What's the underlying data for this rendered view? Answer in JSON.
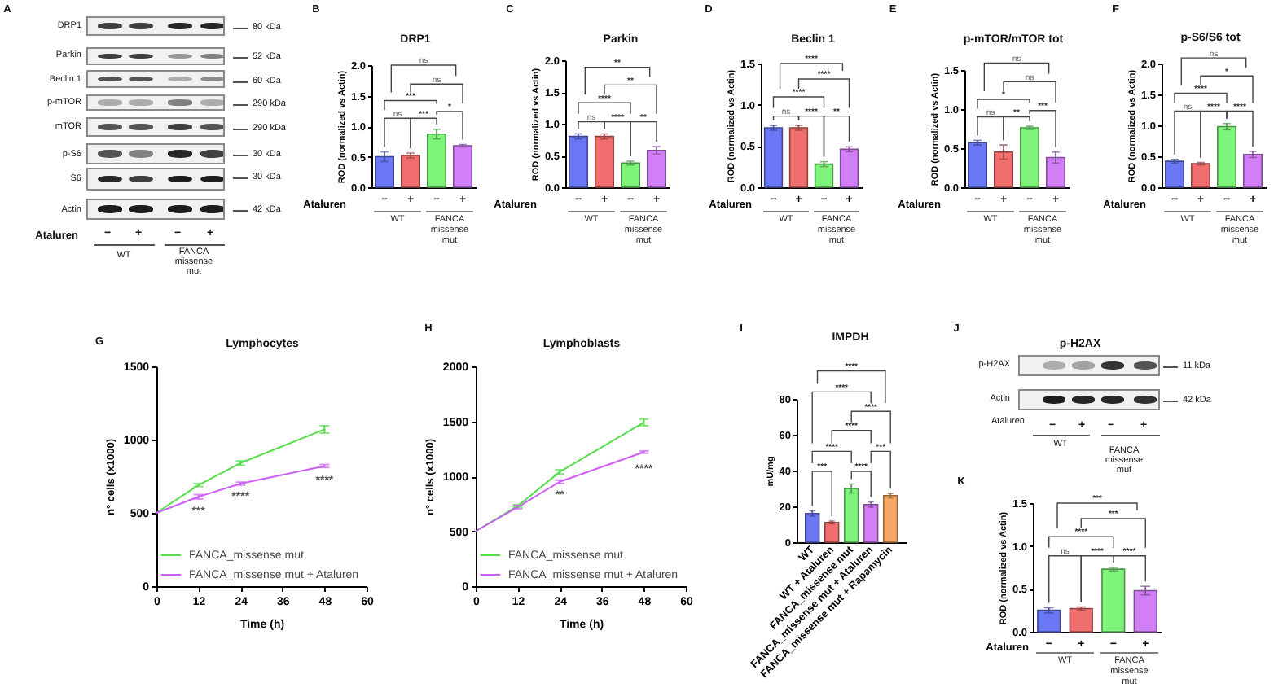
{
  "chart_data": [
    {
      "type": "other",
      "annotations": [
        "A",
        "DRP1",
        "Parkin",
        "Beclin 1",
        "p-mTOR",
        "mTOR",
        "p-S6",
        "S6",
        "Actin",
        "80 kDa",
        "52 kDa",
        "60 kDa",
        "290 kDa",
        "290 kDa",
        "30 kDa",
        "30 kDa",
        "42 kDa",
        "Ataluren",
        "−",
        "+",
        "−",
        "+",
        "WT",
        "FANCA missense mut"
      ]
    },
    {
      "type": "bar",
      "title": "DRP1",
      "ylabel": "ROD (normalized vs Actin)",
      "xlabel": "Ataluren",
      "categories": [
        "−",
        "+",
        "−",
        "+"
      ],
      "values": [
        0.5,
        0.52,
        0.87,
        0.68
      ],
      "errors": [
        0.08,
        0.04,
        0.08,
        0.02
      ],
      "colors": [
        "#6b78f5",
        "#f06e6e",
        "#7ef57a",
        "#d27ef7"
      ],
      "ylim": [
        0,
        2
      ],
      "yticks": [
        {
          "value": 0,
          "label": "0.0"
        },
        0.5,
        {
          "value": 1,
          "label": "1.0"
        },
        1.5,
        {
          "value": 2,
          "label": "2.0"
        }
      ],
      "annotations": [
        "B",
        "WT",
        "FANCA missense mut",
        "ns",
        "ns",
        "***",
        "ns",
        "***",
        "*"
      ]
    },
    {
      "type": "bar",
      "title": "Parkin",
      "ylabel": "ROD (normalized vs Actin)",
      "xlabel": "Ataluren",
      "categories": [
        "−",
        "+",
        "−",
        "+"
      ],
      "values": [
        0.8,
        0.8,
        0.38,
        0.58
      ],
      "errors": [
        0.04,
        0.04,
        0.03,
        0.06
      ],
      "colors": [
        "#6b78f5",
        "#f06e6e",
        "#7ef57a",
        "#d27ef7"
      ],
      "ylim": [
        0,
        2
      ],
      "yticks": [
        {
          "value": 0,
          "label": "0.0"
        },
        0.5,
        {
          "value": 1,
          "label": "1.0"
        },
        1.5,
        {
          "value": 2,
          "label": "2.0"
        }
      ],
      "annotations": [
        "C",
        "WT",
        "FANCA missense mut",
        "**",
        "**",
        "****",
        "ns",
        "****",
        "**"
      ]
    },
    {
      "type": "bar",
      "title": "Beclin 1",
      "ylabel": "ROD (normalized vs Actin)",
      "xlabel": "Ataluren",
      "categories": [
        "−",
        "+",
        "−",
        "+"
      ],
      "values": [
        0.72,
        0.72,
        0.28,
        0.46
      ],
      "errors": [
        0.03,
        0.03,
        0.03,
        0.03
      ],
      "colors": [
        "#6b78f5",
        "#f06e6e",
        "#7ef57a",
        "#d27ef7"
      ],
      "ylim": [
        0,
        1.5
      ],
      "yticks": [
        {
          "value": 0,
          "label": "0.0"
        },
        0.5,
        {
          "value": 1,
          "label": "1.0"
        },
        1.5
      ],
      "annotations": [
        "D",
        "WT",
        "FANCA missense mut",
        "****",
        "****",
        "****",
        "ns",
        "****",
        "**"
      ]
    },
    {
      "type": "bar",
      "title": "p-mTOR/mTOR tot",
      "ylabel": "ROD (normalized vs Actin)",
      "xlabel": "Ataluren",
      "categories": [
        "−",
        "+",
        "−",
        "+"
      ],
      "values": [
        0.57,
        0.45,
        0.76,
        0.38
      ],
      "errors": [
        0.03,
        0.09,
        0.02,
        0.07
      ],
      "colors": [
        "#6b78f5",
        "#f06e6e",
        "#7ef57a",
        "#d27ef7"
      ],
      "ylim": [
        0,
        1.5
      ],
      "yticks": [
        {
          "value": 0,
          "label": "0.0"
        },
        0.5,
        {
          "value": 1,
          "label": "1.0"
        },
        1.5
      ],
      "annotations": [
        "E",
        "WT",
        "FANCA missense mut",
        "ns",
        "ns",
        "*",
        "ns",
        "**",
        "***"
      ]
    },
    {
      "type": "bar",
      "title": "p-S6/S6 tot",
      "ylabel": "ROD (normalized vs Actin)",
      "xlabel": "Ataluren",
      "categories": [
        "−",
        "+",
        "−",
        "+"
      ],
      "values": [
        0.42,
        0.38,
        0.98,
        0.53
      ],
      "errors": [
        0.03,
        0.02,
        0.05,
        0.05
      ],
      "colors": [
        "#6b78f5",
        "#f06e6e",
        "#7ef57a",
        "#d27ef7"
      ],
      "ylim": [
        0,
        2
      ],
      "yticks": [
        {
          "value": 0,
          "label": "0.0"
        },
        0.5,
        {
          "value": 1,
          "label": "1.0"
        },
        1.5,
        {
          "value": 2,
          "label": "2.0"
        }
      ],
      "annotations": [
        "F",
        "WT",
        "FANCA missense mut",
        "ns",
        "*",
        "****",
        "ns",
        "****",
        "****"
      ]
    },
    {
      "type": "line",
      "title": "Lymphocytes",
      "xlabel": "Time (h)",
      "ylabel": "n° cells (x1000)",
      "x": [
        0,
        12,
        24,
        48
      ],
      "series": [
        {
          "name": "FANCA_missense mut",
          "color": "#55dd4a",
          "values": [
            500,
            690,
            840,
            1070
          ],
          "errors": [
            null,
            10,
            15,
            25
          ]
        },
        {
          "name": "FANCA_missense mut + Ataluren",
          "color": "#cc5ff5",
          "values": [
            500,
            610,
            700,
            820
          ],
          "errors": [
            null,
            15,
            10,
            10
          ]
        }
      ],
      "xlim": [
        0,
        60
      ],
      "xticks": [
        0,
        12,
        24,
        36,
        48,
        60
      ],
      "ylim": [
        0,
        1500
      ],
      "yticks": [
        0,
        500,
        1000,
        1500
      ],
      "legend": "bottom right",
      "annotations": [
        "G",
        "***",
        "****",
        "****"
      ]
    },
    {
      "type": "line",
      "title": "Lymphoblasts",
      "xlabel": "Time (h)",
      "ylabel": "n° cells (x1000)",
      "x": [
        0,
        12,
        24,
        48
      ],
      "series": [
        {
          "name": "FANCA_missense mut",
          "color": "#55dd4a",
          "values": [
            500,
            730,
            1040,
            1490
          ],
          "errors": [
            null,
            10,
            20,
            30
          ]
        },
        {
          "name": "FANCA_missense mut + Ataluren",
          "color": "#cc5ff5",
          "values": [
            500,
            720,
            950,
            1220
          ],
          "errors": [
            null,
            15,
            15,
            10
          ]
        }
      ],
      "xlim": [
        0,
        60
      ],
      "xticks": [
        0,
        12,
        24,
        36,
        48,
        60
      ],
      "ylim": [
        0,
        2000
      ],
      "yticks": [
        0,
        500,
        1000,
        1500,
        2000
      ],
      "legend": "bottom right",
      "annotations": [
        "H",
        "**",
        "****"
      ]
    },
    {
      "type": "bar",
      "title": "IMPDH",
      "ylabel": "mU/mg",
      "categories": [
        "WT",
        "WT + Ataluren",
        "FANCA_missense mut",
        "FANCA_missense mut + Ataluren",
        "FANCA_missense mut + Rapamycin"
      ],
      "values": [
        16,
        11,
        30,
        21,
        26
      ],
      "errors": [
        1.5,
        0.8,
        2.5,
        1.5,
        1.2
      ],
      "colors": [
        "#6b78f5",
        "#f06e6e",
        "#7ef57a",
        "#d27ef7",
        "#f5a763"
      ],
      "ylim": [
        0,
        80
      ],
      "yticks": [
        0,
        20,
        40,
        60,
        80
      ],
      "annotations": [
        "I",
        "****",
        "****",
        "****",
        "****",
        "****",
        "***",
        "***",
        "****"
      ]
    },
    {
      "type": "other",
      "title": "p-H2AX",
      "annotations": [
        "J",
        "p-H2AX",
        "Actin",
        "11 kDa",
        "42 kDa",
        "Ataluren",
        "−",
        "+",
        "−",
        "+",
        "WT",
        "FANCA missense mut"
      ]
    },
    {
      "type": "bar",
      "ylabel": "ROD (normalized vs Actin)",
      "xlabel": "Ataluren",
      "categories": [
        "−",
        "+",
        "−",
        "+"
      ],
      "values": [
        0.25,
        0.27,
        0.73,
        0.48
      ],
      "errors": [
        0.03,
        0.02,
        0.02,
        0.05
      ],
      "colors": [
        "#6b78f5",
        "#f06e6e",
        "#7ef57a",
        "#d27ef7"
      ],
      "ylim": [
        0,
        1.5
      ],
      "yticks": [
        {
          "value": 0,
          "label": "0.0"
        },
        0.5,
        {
          "value": 1,
          "label": "1.0"
        },
        1.5
      ],
      "annotations": [
        "K",
        "WT",
        "FANCA missense mut",
        "***",
        "***",
        "****",
        "ns",
        "****",
        "****"
      ]
    }
  ]
}
